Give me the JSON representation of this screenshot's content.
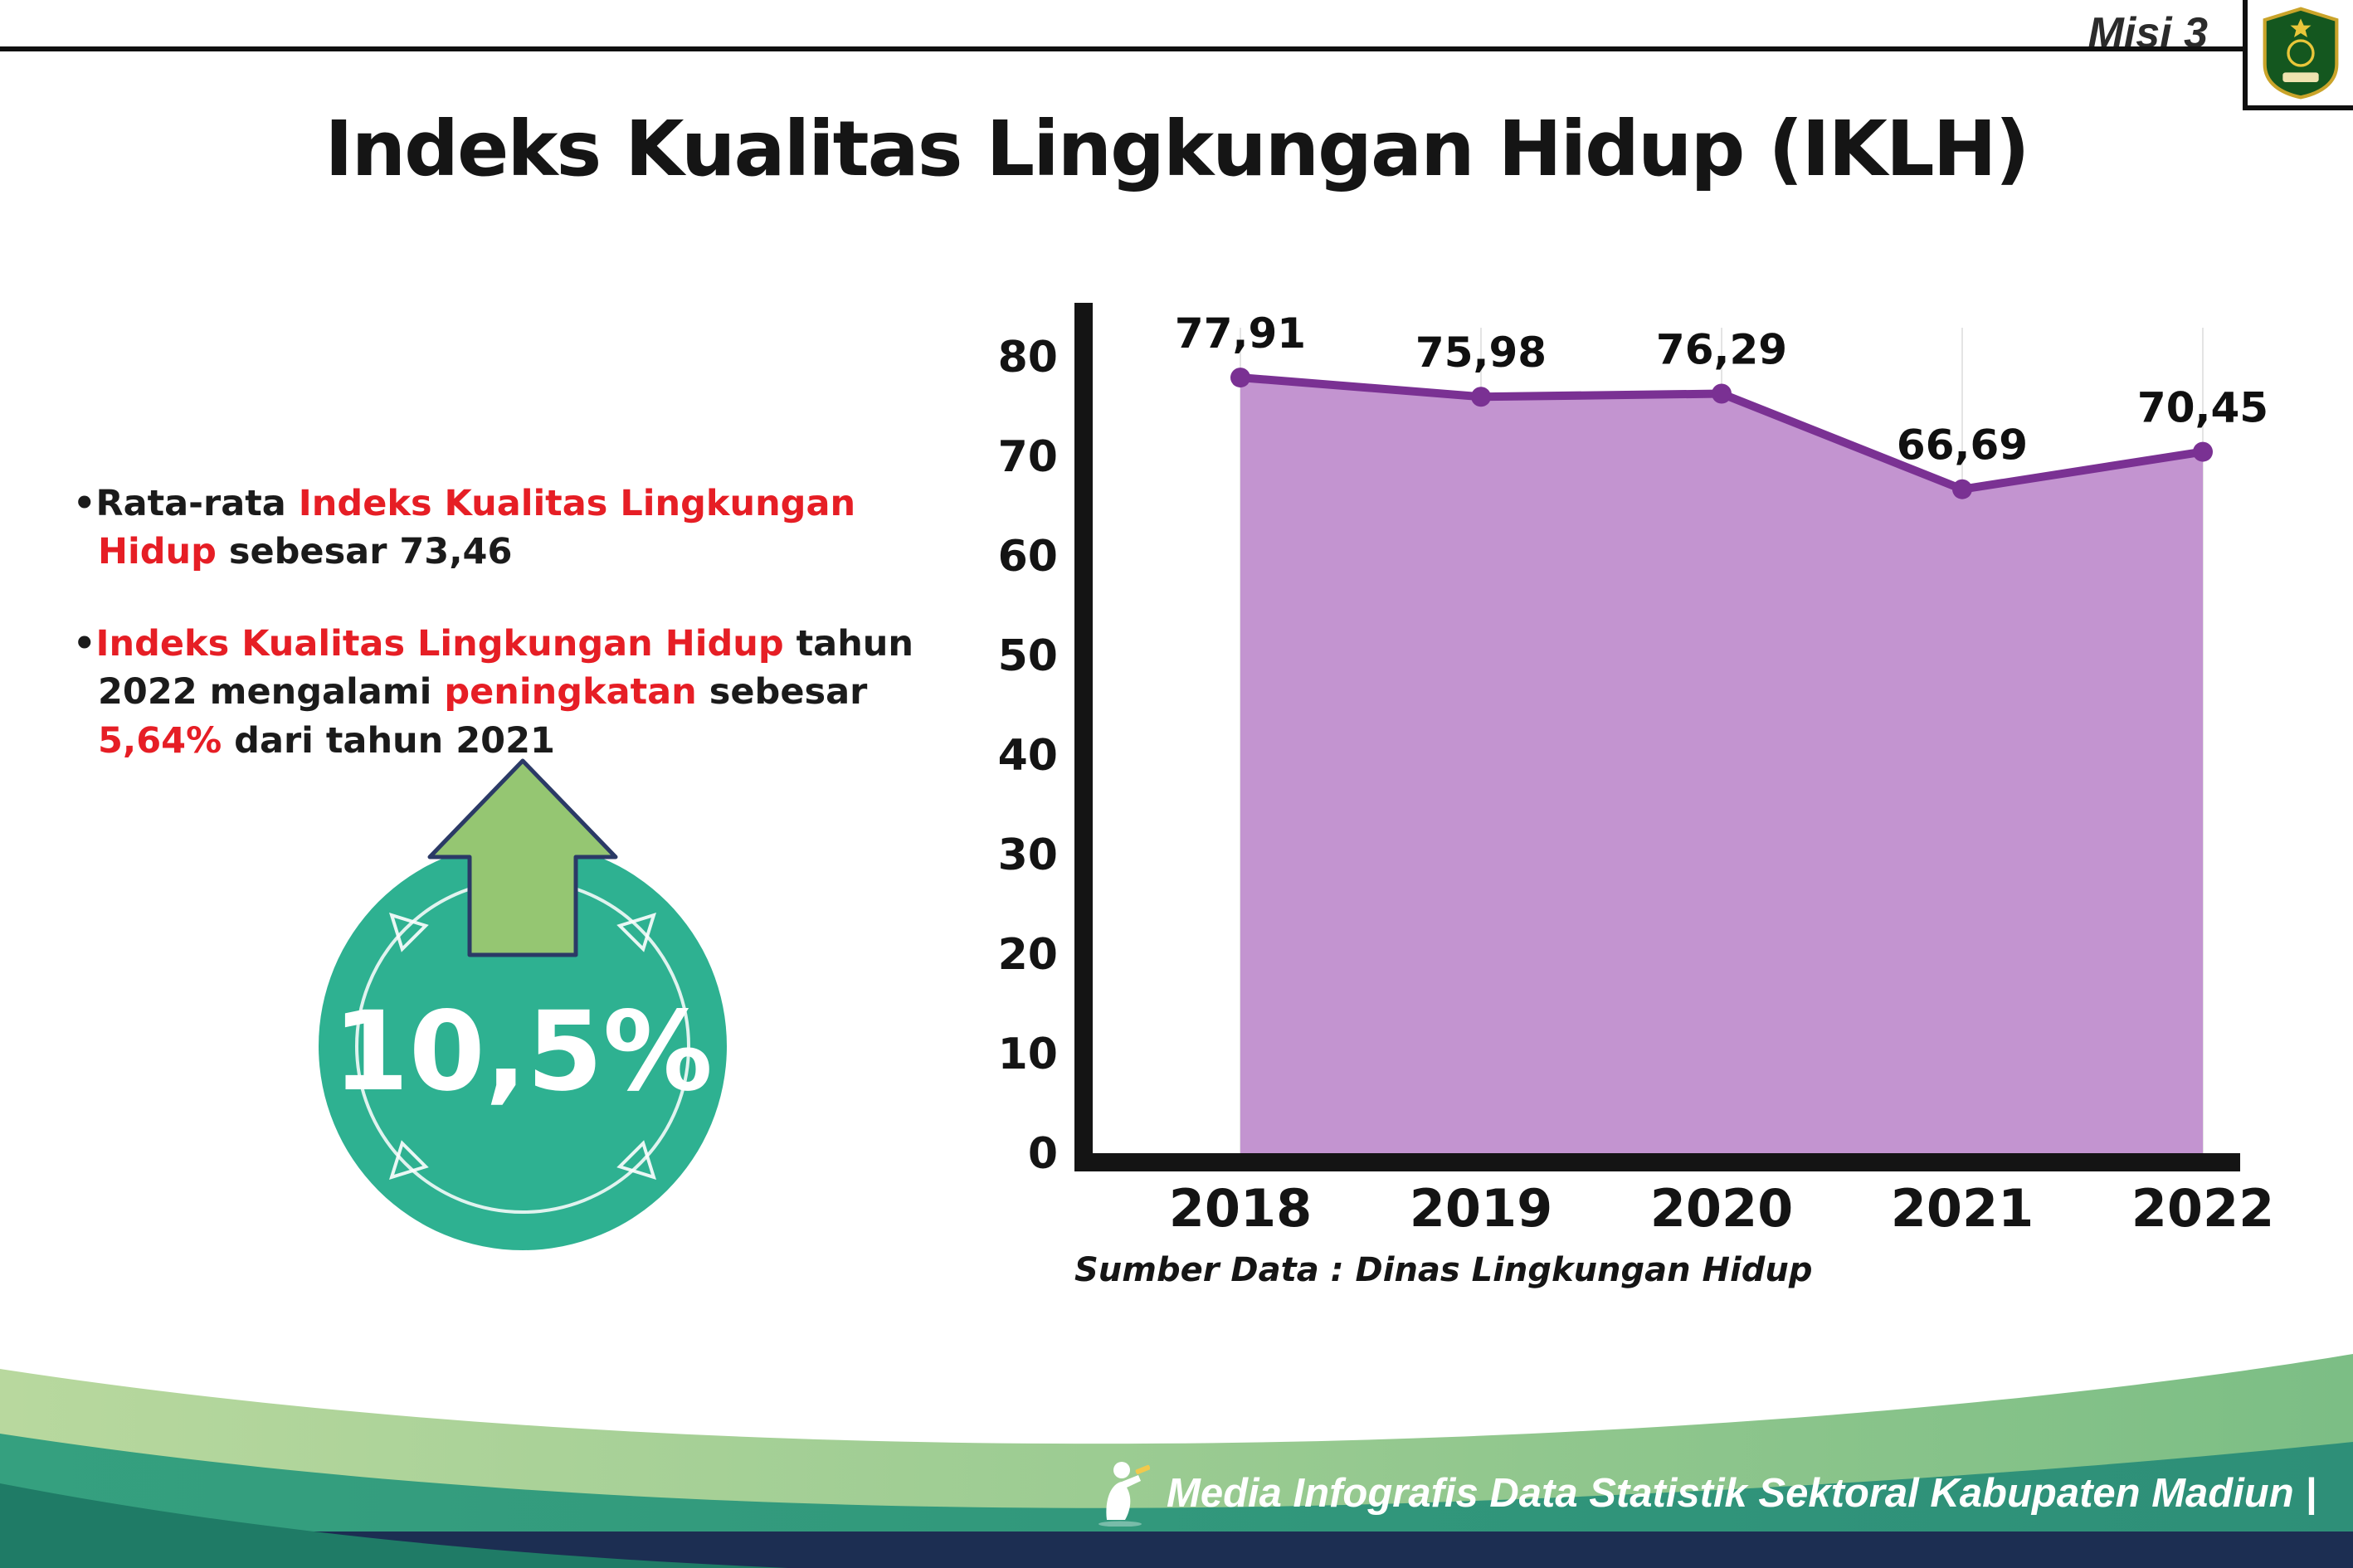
{
  "header": {
    "misi_label": "Misi 3",
    "title": "Indeks Kualitas Lingkungan Hidup (IKLH)"
  },
  "bullets": {
    "b1": {
      "lead": "Rata-rata ",
      "highlight": "Indeks Kualitas Lingkungan Hidup",
      "tail": " sebesar 73,46"
    },
    "b2": {
      "p1": "Indeks Kualitas Lingkungan Hidup",
      "p2": " tahun 2022 mengalami ",
      "p3": "peningkatan",
      "p4": " sebesar ",
      "p5": "5,64%",
      "p6": " dari tahun 2021"
    }
  },
  "badge": {
    "value": "10,5%"
  },
  "chart_data": {
    "type": "area",
    "title": "Indeks Kualitas Lingkungan Hidup (IKLH)",
    "categories": [
      "2018",
      "2019",
      "2020",
      "2021",
      "2022"
    ],
    "values": [
      77.91,
      75.98,
      76.29,
      66.69,
      70.45
    ],
    "value_labels": [
      "77,91",
      "75,98",
      "76,29",
      "66,69",
      "70,45"
    ],
    "xlabel": "",
    "ylabel": "",
    "ylim": [
      0,
      80
    ],
    "yticks": [
      0,
      10,
      20,
      30,
      40,
      50,
      60,
      70,
      80
    ],
    "grid": "vertical-light",
    "legend": "none",
    "line_color": "#7a3193",
    "fill_color": "#c394d0",
    "source": "Sumber Data : Dinas Lingkungan Hidup"
  },
  "footer": {
    "credit": "Media Infografis Data Statistik Sektoral Kabupaten Madiun |"
  },
  "colors": {
    "accent_red": "#e61e25",
    "badge_teal": "#2eb191",
    "arrow_green": "#95c672",
    "arrow_outline": "#2b3a66",
    "navy": "#1c2e52",
    "axis_black": "#141414"
  }
}
